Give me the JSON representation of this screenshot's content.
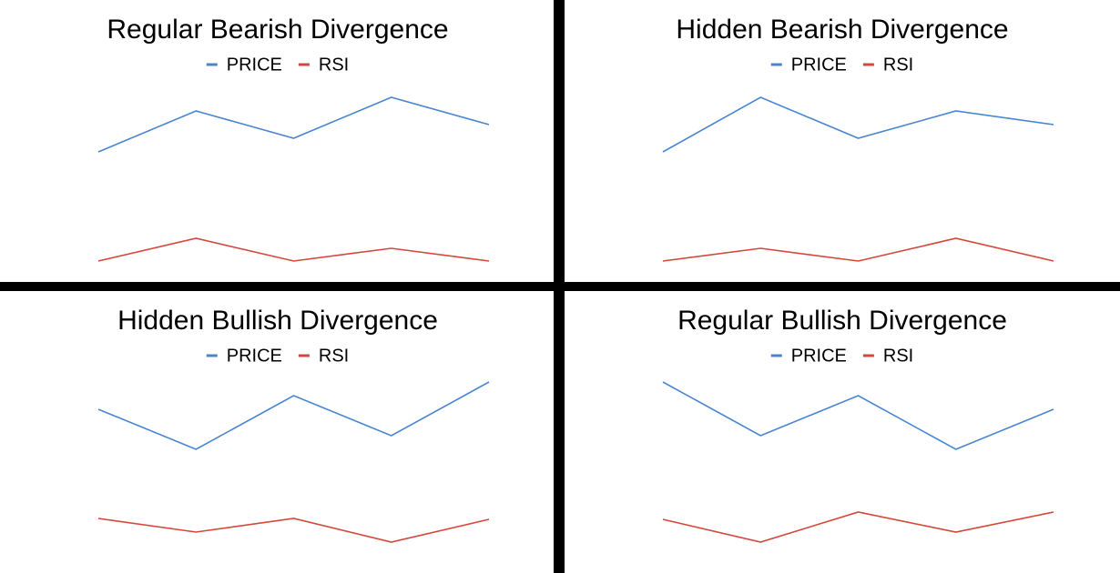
{
  "chart_data": [
    {
      "type": "line",
      "title": "Regular Bearish Divergence",
      "categories": [
        null,
        null,
        null,
        null,
        null
      ],
      "series": [
        {
          "name": "PRICE",
          "color": "#4a86d0",
          "values": [
            64,
            86.5,
            71.5,
            94,
            79
          ]
        },
        {
          "name": "RSI",
          "color": "#d4473a",
          "values": [
            4,
            16.5,
            4,
            11,
            4
          ]
        }
      ],
      "ylim": [
        0,
        100
      ],
      "legend": "top"
    },
    {
      "type": "line",
      "title": "Hidden Bearish Divergence",
      "categories": [
        null,
        null,
        null,
        null,
        null
      ],
      "series": [
        {
          "name": "PRICE",
          "color": "#4a86d0",
          "values": [
            64,
            94,
            71.5,
            86.5,
            79
          ]
        },
        {
          "name": "RSI",
          "color": "#d4473a",
          "values": [
            4,
            11,
            4,
            16.5,
            4
          ]
        }
      ],
      "ylim": [
        0,
        100
      ],
      "legend": "top"
    },
    {
      "type": "line",
      "title": "Hidden Bullish Divergence",
      "categories": [
        null,
        null,
        null,
        null,
        null
      ],
      "series": [
        {
          "name": "PRICE",
          "color": "#4a86d0",
          "values": [
            82.5,
            60.5,
            90,
            68,
            97.5
          ]
        },
        {
          "name": "RSI",
          "color": "#d4473a",
          "values": [
            22.5,
            15,
            22.5,
            9.5,
            22
          ]
        }
      ],
      "ylim": [
        0,
        100
      ],
      "legend": "top"
    },
    {
      "type": "line",
      "title": "Regular Bullish Divergence",
      "categories": [
        null,
        null,
        null,
        null,
        null
      ],
      "series": [
        {
          "name": "PRICE",
          "color": "#4a86d0",
          "values": [
            97.5,
            68,
            90,
            60.5,
            82.5
          ]
        },
        {
          "name": "RSI",
          "color": "#d4473a",
          "values": [
            22,
            9.5,
            26,
            15,
            26
          ]
        }
      ],
      "ylim": [
        0,
        100
      ],
      "legend": "top"
    }
  ]
}
